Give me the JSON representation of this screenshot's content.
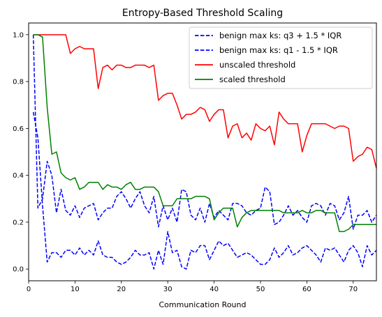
{
  "chart_data": {
    "type": "line",
    "title": "Entropy-Based Threshold Scaling",
    "xlabel": "Communication Round",
    "ylabel": "",
    "xlim": [
      0,
      75
    ],
    "ylim": [
      -0.05,
      1.05
    ],
    "xticks": [
      0,
      10,
      20,
      30,
      40,
      50,
      60,
      70
    ],
    "yticks": [
      0.0,
      0.2,
      0.4,
      0.6,
      0.8,
      1.0
    ],
    "grid": false,
    "legend_position": "top-right",
    "x": [
      1,
      2,
      3,
      4,
      5,
      6,
      7,
      8,
      9,
      10,
      11,
      12,
      13,
      14,
      15,
      16,
      17,
      18,
      19,
      20,
      21,
      22,
      23,
      24,
      25,
      26,
      27,
      28,
      29,
      30,
      31,
      32,
      33,
      34,
      35,
      36,
      37,
      38,
      39,
      40,
      41,
      42,
      43,
      44,
      45,
      46,
      47,
      48,
      49,
      50,
      51,
      52,
      53,
      54,
      55,
      56,
      57,
      58,
      59,
      60,
      61,
      62,
      63,
      64,
      65,
      66,
      67,
      68,
      69,
      70,
      71,
      72,
      73,
      74,
      75
    ],
    "series": [
      {
        "name": "benign max ks: q3 + 1.5 * IQR",
        "color": "#0000ff",
        "style": "dashed",
        "values": [
          1.0,
          0.26,
          0.3,
          0.46,
          0.4,
          0.24,
          0.34,
          0.25,
          0.23,
          0.27,
          0.22,
          0.26,
          0.27,
          0.28,
          0.21,
          0.24,
          0.26,
          0.26,
          0.31,
          0.33,
          0.3,
          0.26,
          0.3,
          0.33,
          0.27,
          0.24,
          0.31,
          0.18,
          0.27,
          0.21,
          0.26,
          0.2,
          0.34,
          0.33,
          0.23,
          0.21,
          0.26,
          0.2,
          0.28,
          0.22,
          0.25,
          0.23,
          0.21,
          0.28,
          0.28,
          0.27,
          0.24,
          0.23,
          0.25,
          0.26,
          0.35,
          0.33,
          0.19,
          0.2,
          0.23,
          0.27,
          0.23,
          0.25,
          0.22,
          0.2,
          0.27,
          0.28,
          0.27,
          0.23,
          0.28,
          0.27,
          0.21,
          0.24,
          0.31,
          0.17,
          0.23,
          0.23,
          0.25,
          0.2,
          0.23
        ]
      },
      {
        "name": "benign max ks: q1 - 1.5 * IQR",
        "color": "#0000ff",
        "style": "dashed",
        "values": [
          0.67,
          0.56,
          0.27,
          0.03,
          0.07,
          0.07,
          0.05,
          0.08,
          0.08,
          0.06,
          0.09,
          0.06,
          0.08,
          0.06,
          0.12,
          0.06,
          0.05,
          0.05,
          0.03,
          0.02,
          0.03,
          0.05,
          0.08,
          0.06,
          0.06,
          0.07,
          0.0,
          0.08,
          0.02,
          0.16,
          0.07,
          0.08,
          0.01,
          0.0,
          0.08,
          0.07,
          0.1,
          0.1,
          0.04,
          0.08,
          0.12,
          0.1,
          0.11,
          0.08,
          0.05,
          0.06,
          0.07,
          0.06,
          0.04,
          0.02,
          0.02,
          0.04,
          0.09,
          0.05,
          0.07,
          0.1,
          0.06,
          0.07,
          0.09,
          0.1,
          0.08,
          0.06,
          0.03,
          0.09,
          0.08,
          0.09,
          0.06,
          0.03,
          0.08,
          0.1,
          0.07,
          0.01,
          0.1,
          0.06,
          0.08
        ]
      },
      {
        "name": "unscaled threshold",
        "color": "#ff0000",
        "style": "solid",
        "values": [
          1.0,
          1.0,
          1.0,
          1.0,
          1.0,
          1.0,
          1.0,
          1.0,
          0.92,
          0.94,
          0.95,
          0.94,
          0.94,
          0.94,
          0.77,
          0.86,
          0.87,
          0.85,
          0.87,
          0.87,
          0.86,
          0.86,
          0.87,
          0.87,
          0.87,
          0.86,
          0.87,
          0.72,
          0.74,
          0.75,
          0.75,
          0.7,
          0.64,
          0.66,
          0.66,
          0.67,
          0.69,
          0.68,
          0.63,
          0.66,
          0.68,
          0.68,
          0.56,
          0.61,
          0.62,
          0.56,
          0.58,
          0.55,
          0.62,
          0.6,
          0.59,
          0.61,
          0.53,
          0.67,
          0.64,
          0.62,
          0.62,
          0.62,
          0.5,
          0.57,
          0.62,
          0.62,
          0.62,
          0.62,
          0.61,
          0.6,
          0.61,
          0.61,
          0.6,
          0.46,
          0.48,
          0.49,
          0.52,
          0.51,
          0.43
        ]
      },
      {
        "name": "scaled threshold",
        "color": "#008000",
        "style": "solid",
        "values": [
          1.0,
          1.0,
          0.99,
          0.69,
          0.49,
          0.5,
          0.41,
          0.39,
          0.38,
          0.39,
          0.34,
          0.35,
          0.37,
          0.37,
          0.37,
          0.34,
          0.36,
          0.35,
          0.35,
          0.34,
          0.36,
          0.37,
          0.34,
          0.34,
          0.35,
          0.35,
          0.35,
          0.33,
          0.27,
          0.27,
          0.27,
          0.3,
          0.3,
          0.3,
          0.3,
          0.31,
          0.31,
          0.31,
          0.3,
          0.21,
          0.24,
          0.26,
          0.26,
          0.26,
          0.18,
          0.22,
          0.24,
          0.25,
          0.25,
          0.25,
          0.25,
          0.25,
          0.25,
          0.25,
          0.24,
          0.24,
          0.24,
          0.24,
          0.25,
          0.24,
          0.24,
          0.25,
          0.25,
          0.24,
          0.24,
          0.24,
          0.16,
          0.16,
          0.17,
          0.19,
          0.19,
          0.19,
          0.19,
          0.19,
          0.19
        ]
      }
    ]
  }
}
